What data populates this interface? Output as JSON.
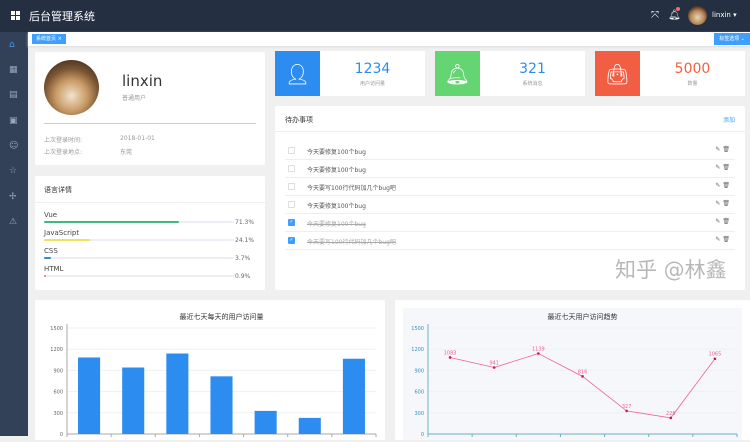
{
  "header": {
    "title": "后台管理系统",
    "username": "linxin",
    "user_caret": "▾",
    "fullscreen_icon": "fullscreen-icon",
    "bell_icon": "bell-icon"
  },
  "sidebar": {
    "icons": [
      "home-icon",
      "grid-icon",
      "document-icon",
      "form-icon",
      "smile-icon",
      "star-icon",
      "drag-icon",
      "warning-icon"
    ]
  },
  "tags": {
    "active": "系统首页",
    "close": "×",
    "options": "标签选项 ⌄"
  },
  "profile": {
    "name": "linxin",
    "role": "普通用户",
    "last_login_time_label": "上次登录时间:",
    "last_login_time": "2018-01-01",
    "last_login_place_label": "上次登录地点:",
    "last_login_place": "东莞"
  },
  "languages": {
    "title": "语言详情",
    "items": [
      {
        "name": "Vue",
        "percent": 71.3,
        "pct_label": "71.3%",
        "color": "#42b983"
      },
      {
        "name": "JavaScript",
        "percent": 24.1,
        "pct_label": "24.1%",
        "color": "#f1e05a"
      },
      {
        "name": "CSS",
        "percent": 3.7,
        "pct_label": "3.7%",
        "color": "#2a8fd8"
      },
      {
        "name": "HTML",
        "percent": 0.9,
        "pct_label": "0.9%",
        "color": "#f56c6c"
      }
    ]
  },
  "stats": [
    {
      "value": "1234",
      "label": "用户访问量",
      "color": "#2d8cf0",
      "text_color": "#2d8cf0",
      "icon": "user-icon"
    },
    {
      "value": "321",
      "label": "系统消息",
      "color": "#64d572",
      "text_color": "#2d8cf0",
      "icon": "bell-icon"
    },
    {
      "value": "5000",
      "label": "数量",
      "color": "#f25e43",
      "text_color": "#f25e43",
      "icon": "shopping-bag-icon"
    }
  ],
  "todo": {
    "title": "待办事项",
    "add": "添加",
    "items": [
      {
        "text": "今天要修复100个bug",
        "done": false
      },
      {
        "text": "今天要修复100个bug",
        "done": false
      },
      {
        "text": "今天要写100行代码加几个bug吧",
        "done": false
      },
      {
        "text": "今天要修复100个bug",
        "done": false
      },
      {
        "text": "今天要修复100个bug",
        "done": true
      },
      {
        "text": "今天要写100行代码加几个bug吧",
        "done": true
      }
    ]
  },
  "watermark": "知乎 @林鑫",
  "chart_data": [
    {
      "type": "bar",
      "title": "最近七天每天的用户访问量",
      "ylim": [
        0,
        1500
      ],
      "yticks": [
        "0",
        "300",
        "600",
        "900",
        "1200",
        "1500"
      ],
      "values": [
        1083,
        941,
        1139,
        816,
        327,
        228,
        1065
      ],
      "color": "#2d8cf0"
    },
    {
      "type": "line",
      "title": "最近七天用户访问趋势",
      "ylim": [
        0,
        1500
      ],
      "yticks": [
        "0",
        "300",
        "600",
        "900",
        "1200",
        "1500"
      ],
      "values": [
        1083,
        941,
        1139,
        816,
        327,
        228,
        1065
      ],
      "data_labels": [
        "1083",
        "941",
        "1139",
        "816",
        "327",
        "228",
        "1065"
      ],
      "color": "#f06292"
    }
  ]
}
